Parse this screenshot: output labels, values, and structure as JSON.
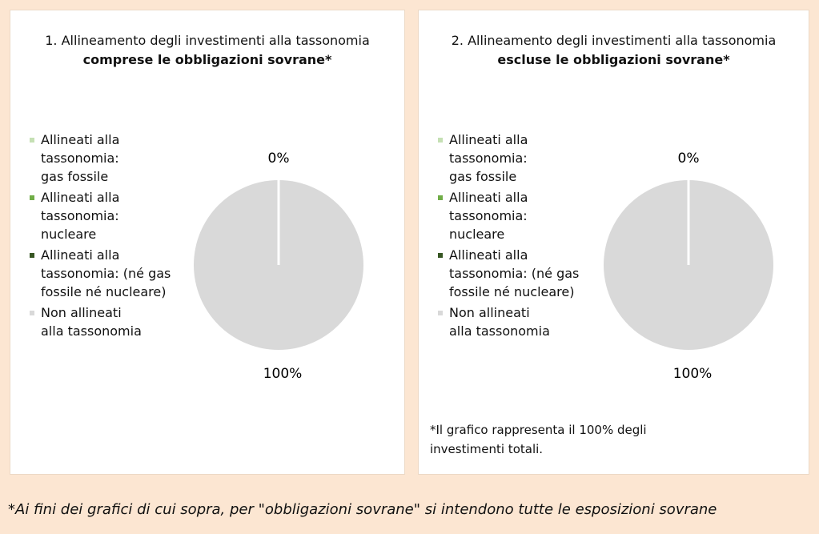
{
  "chart_data": [
    {
      "type": "pie",
      "title": "1. Allineamento degli investimenti alla tassonomia",
      "subtitle": "comprese le obbligazioni sovrane*",
      "categories": [
        "Allineati alla\ntassonomia:\ngas fossile",
        "Allineati alla\ntassonomia:\nnucleare",
        "Allineati alla\ntassonomia: (né gas\nfossile né nucleare)",
        "Non allineati\nalla tassonomia"
      ],
      "values": [
        0,
        0,
        0,
        100
      ],
      "value_labels": [
        "0%",
        null,
        null,
        "100%"
      ],
      "colors": [
        "#c5e0b4",
        "#70ad47",
        "#375623",
        "#d9d9d9"
      ]
    },
    {
      "type": "pie",
      "title": "2. Allineamento degli investimenti alla tassonomia",
      "subtitle": "escluse le obbligazioni sovrane*",
      "categories": [
        "Allineati alla\ntassonomia:\ngas fossile",
        "Allineati alla\ntassonomia:\nnucleare",
        "Allineati alla\ntassonomia: (né gas\nfossile né nucleare)",
        "Non allineati\nalla tassonomia"
      ],
      "values": [
        0,
        0,
        0,
        100
      ],
      "value_labels": [
        "0%",
        null,
        null,
        "100%"
      ],
      "colors": [
        "#c5e0b4",
        "#70ad47",
        "#375623",
        "#d9d9d9"
      ],
      "note": "*Il grafico rappresenta il 100% degli\ninvestimenti totali."
    }
  ],
  "footer": "*Ai fini dei grafici di cui sopra, per \"obbligazioni sovrane\" si intendono tutte le esposizioni sovrane"
}
